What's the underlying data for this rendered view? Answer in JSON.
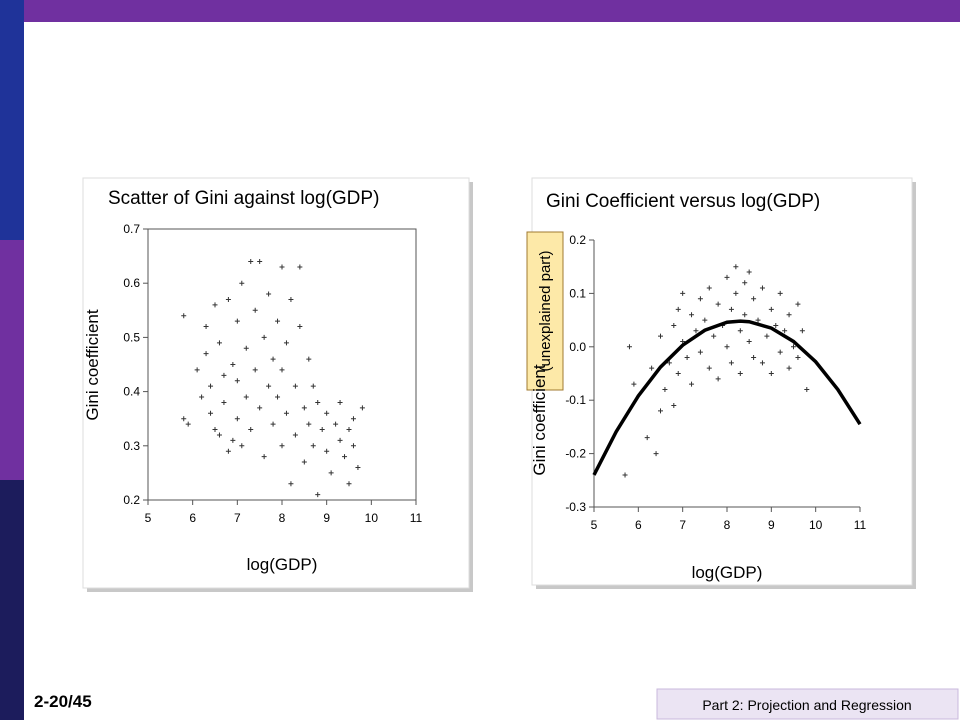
{
  "slide": {
    "page_number": "2-20/45",
    "footer": "Part 2: Projection and Regression"
  },
  "chart_data": [
    {
      "type": "scatter",
      "title": "Scatter of Gini against log(GDP)",
      "x_label": "log(GDP)",
      "y_label": "Gini coefficient",
      "xlim": [
        5,
        11
      ],
      "xticks": [
        5,
        6,
        7,
        8,
        9,
        10,
        11
      ],
      "ylim": [
        0.2,
        0.7
      ],
      "yticks": [
        0.2,
        0.3,
        0.4,
        0.5,
        0.6,
        0.7
      ],
      "series": [
        {
          "color": "#333333",
          "marker": "+",
          "x": [
            5.8,
            5.8,
            5.9,
            6.1,
            6.2,
            6.3,
            6.3,
            6.4,
            6.4,
            6.5,
            6.5,
            6.6,
            6.6,
            6.7,
            6.7,
            6.8,
            6.8,
            6.9,
            6.9,
            7.0,
            7.0,
            7.0,
            7.1,
            7.1,
            7.2,
            7.2,
            7.3,
            7.3,
            7.4,
            7.4,
            7.5,
            7.5,
            7.6,
            7.6,
            7.7,
            7.7,
            7.8,
            7.8,
            7.9,
            7.9,
            8.0,
            8.0,
            8.0,
            8.1,
            8.1,
            8.2,
            8.2,
            8.3,
            8.3,
            8.4,
            8.4,
            8.5,
            8.5,
            8.6,
            8.6,
            8.7,
            8.7,
            8.8,
            8.8,
            8.9,
            9.0,
            9.0,
            9.1,
            9.2,
            9.3,
            9.3,
            9.4,
            9.5,
            9.5,
            9.6,
            9.6,
            9.7,
            9.8
          ],
          "values": [
            0.54,
            0.35,
            0.34,
            0.44,
            0.39,
            0.52,
            0.47,
            0.41,
            0.36,
            0.33,
            0.56,
            0.32,
            0.49,
            0.43,
            0.38,
            0.29,
            0.57,
            0.31,
            0.45,
            0.53,
            0.42,
            0.35,
            0.6,
            0.3,
            0.48,
            0.39,
            0.64,
            0.33,
            0.55,
            0.44,
            0.37,
            0.64,
            0.5,
            0.28,
            0.41,
            0.58,
            0.46,
            0.34,
            0.53,
            0.39,
            0.63,
            0.3,
            0.44,
            0.49,
            0.36,
            0.57,
            0.23,
            0.41,
            0.32,
            0.52,
            0.63,
            0.37,
            0.27,
            0.46,
            0.34,
            0.41,
            0.3,
            0.38,
            0.21,
            0.33,
            0.36,
            0.29,
            0.25,
            0.34,
            0.31,
            0.38,
            0.28,
            0.33,
            0.23,
            0.3,
            0.35,
            0.26,
            0.37
          ]
        }
      ]
    },
    {
      "type": "scatter",
      "title": "Gini Coefficient versus log(GDP)",
      "x_label": "log(GDP)",
      "y_label": "Gini coefficient",
      "y_label_note": "(unexplained part)",
      "xlim": [
        5,
        11
      ],
      "xticks": [
        5,
        6,
        7,
        8,
        9,
        10,
        11
      ],
      "ylim": [
        -0.3,
        0.2
      ],
      "yticks": [
        -0.3,
        -0.2,
        -0.1,
        {
          "value": 0,
          "label": "0.0"
        },
        0.1,
        0.2
      ],
      "series": [
        {
          "color": "#333333",
          "marker": "+",
          "x": [
            5.7,
            5.8,
            5.9,
            6.2,
            6.3,
            6.4,
            6.5,
            6.5,
            6.6,
            6.7,
            6.8,
            6.8,
            6.9,
            6.9,
            7.0,
            7.0,
            7.1,
            7.2,
            7.2,
            7.3,
            7.4,
            7.4,
            7.5,
            7.6,
            7.6,
            7.7,
            7.8,
            7.8,
            7.9,
            8.0,
            8.0,
            8.1,
            8.1,
            8.2,
            8.2,
            8.3,
            8.3,
            8.4,
            8.4,
            8.5,
            8.5,
            8.6,
            8.6,
            8.7,
            8.8,
            8.8,
            8.9,
            9.0,
            9.0,
            9.1,
            9.2,
            9.2,
            9.3,
            9.4,
            9.4,
            9.5,
            9.6,
            9.6,
            9.7,
            9.8
          ],
          "values": [
            -0.24,
            0.0,
            -0.07,
            -0.17,
            -0.04,
            -0.2,
            -0.12,
            0.02,
            -0.08,
            -0.03,
            0.04,
            -0.11,
            0.07,
            -0.05,
            0.01,
            0.1,
            -0.02,
            0.06,
            -0.07,
            0.03,
            0.09,
            -0.01,
            0.05,
            0.11,
            -0.04,
            0.02,
            0.08,
            -0.06,
            0.04,
            0.13,
            0.0,
            0.07,
            -0.03,
            0.1,
            0.15,
            0.03,
            -0.05,
            0.12,
            0.06,
            0.01,
            0.14,
            -0.02,
            0.09,
            0.05,
            -0.03,
            0.11,
            0.02,
            0.07,
            -0.05,
            0.04,
            0.1,
            -0.01,
            0.03,
            -0.04,
            0.06,
            0.0,
            0.08,
            -0.02,
            0.03,
            -0.08
          ]
        },
        {
          "color": "#000000",
          "line": true,
          "x": [
            5,
            5.5,
            6,
            6.5,
            7,
            7.5,
            8,
            8.3,
            8.5,
            9,
            9.5,
            10,
            10.5,
            11
          ],
          "values": [
            -0.24,
            -0.159,
            -0.092,
            -0.038,
            0.003,
            0.031,
            0.046,
            0.048,
            0.047,
            0.035,
            0.01,
            -0.028,
            -0.08,
            -0.145
          ]
        }
      ]
    }
  ]
}
